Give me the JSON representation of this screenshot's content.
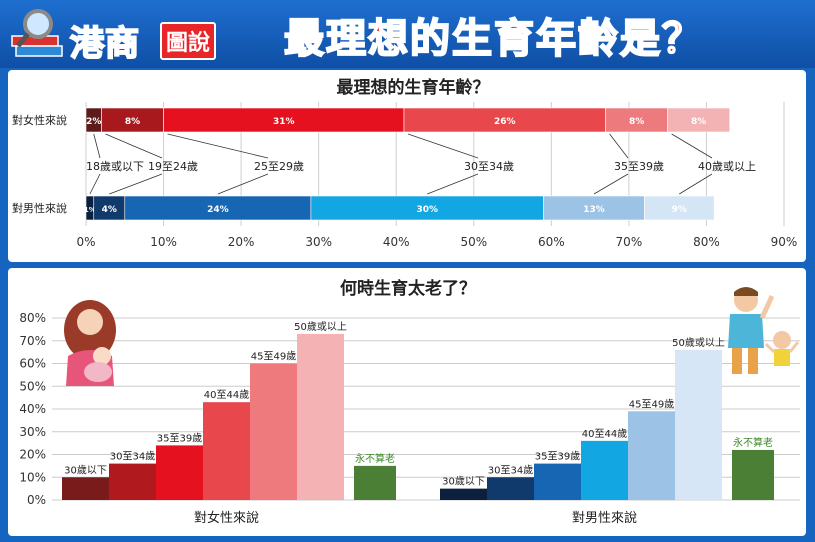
{
  "banner": {
    "logo_text": "港商",
    "logo_tag": "圖說",
    "title": "最理想的生育年齡是？"
  },
  "chart_data": [
    {
      "type": "bar",
      "orientation": "horizontal",
      "stacked": true,
      "title": "最理想的生育年齡？",
      "categories": [
        "對女性來說",
        "對男性來說"
      ],
      "series": [
        {
          "name": "18歲或以下",
          "values": [
            2,
            1
          ],
          "colors": [
            "#5e1a1a",
            "#0c1f3d"
          ]
        },
        {
          "name": "19至24歲",
          "values": [
            8,
            4
          ],
          "colors": [
            "#a8191e",
            "#103a6b"
          ]
        },
        {
          "name": "25至29歲",
          "values": [
            31,
            24
          ],
          "colors": [
            "#e5111e",
            "#1666b4"
          ]
        },
        {
          "name": "30至34歲",
          "values": [
            26,
            30
          ],
          "colors": [
            "#e8474b",
            "#12a6e3"
          ]
        },
        {
          "name": "35至39歲",
          "values": [
            8,
            13
          ],
          "colors": [
            "#ed7a7d",
            "#9cc3e6"
          ]
        },
        {
          "name": "40歲或以上",
          "values": [
            8,
            9
          ],
          "colors": [
            "#f3b2b4",
            "#d4e6f5"
          ]
        }
      ],
      "value_labels": [
        [
          "2%",
          "8%",
          "31%",
          "26%",
          "8%",
          "8%"
        ],
        [
          "1%",
          "4%",
          "24%",
          "30%",
          "13%",
          "9%"
        ]
      ],
      "xticks": [
        "0%",
        "10%",
        "20%",
        "30%",
        "40%",
        "50%",
        "60%",
        "70%",
        "80%",
        "90%"
      ],
      "xlim": [
        0,
        90
      ],
      "grid": true
    },
    {
      "type": "bar",
      "title": "何時生育太老了？",
      "groups": [
        {
          "name": "對女性來說",
          "bars": [
            {
              "label": "30歲以下",
              "value": 10,
              "color": "#7a1b1b"
            },
            {
              "label": "30至34歲",
              "value": 16,
              "color": "#b01a1e"
            },
            {
              "label": "35至39歲",
              "value": 24,
              "color": "#e5111e"
            },
            {
              "label": "40至44歲",
              "value": 43,
              "color": "#e8474b"
            },
            {
              "label": "45至49歲",
              "value": 60,
              "color": "#ee7a7d"
            },
            {
              "label": "50歲或以上",
              "value": 73,
              "color": "#f4b2b5"
            },
            {
              "label": "永不算老",
              "value": 15,
              "color": "#4a7f35"
            }
          ]
        },
        {
          "name": "對男性來說",
          "bars": [
            {
              "label": "30歲以下",
              "value": 5,
              "color": "#0c1f3d"
            },
            {
              "label": "30至34歲",
              "value": 10,
              "color": "#103a6b"
            },
            {
              "label": "35至39歲",
              "value": 16,
              "color": "#1666b4"
            },
            {
              "label": "40至44歲",
              "value": 26,
              "color": "#12a6e3"
            },
            {
              "label": "45至49歲",
              "value": 39,
              "color": "#9cc3e6"
            },
            {
              "label": "50歲或以上",
              "value": 66,
              "color": "#d6e6f6"
            },
            {
              "label": "永不算老",
              "value": 22,
              "color": "#4a7f35"
            }
          ]
        }
      ],
      "yticks": [
        "0%",
        "10%",
        "20%",
        "30%",
        "40%",
        "50%",
        "60%",
        "70%",
        "80%"
      ],
      "ylim": [
        0,
        80
      ],
      "never_old_label_color": "#3f8a2a"
    }
  ]
}
